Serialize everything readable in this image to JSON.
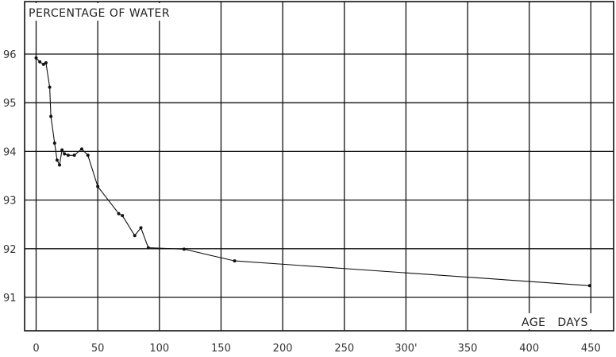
{
  "chart_data": {
    "type": "line",
    "title": "PERCENTAGE OF WATER",
    "xlabel": "AGE   DAYS",
    "ylabel": "",
    "xlim": [
      -10,
      462
    ],
    "ylim": [
      90.5,
      97.0
    ],
    "grid": true,
    "x_ticks": [
      0,
      50,
      100,
      150,
      200,
      250,
      300,
      350,
      400,
      450
    ],
    "x_tick_labels": [
      "0",
      "50",
      "100",
      "150",
      "200",
      "250",
      "300'",
      "350",
      "400",
      "450"
    ],
    "y_ticks": [
      91,
      92,
      93,
      94,
      95,
      96
    ],
    "y_tick_labels": [
      "91",
      "92",
      "93",
      "94",
      "95",
      "96"
    ],
    "series": [
      {
        "x": [
          0,
          3,
          6,
          8,
          11,
          12,
          15,
          17,
          19,
          21,
          23,
          26,
          31,
          37,
          42,
          50,
          67,
          70,
          80,
          85,
          91,
          120,
          161,
          449
        ],
        "y": [
          95.92,
          95.84,
          95.79,
          95.82,
          95.32,
          94.72,
          94.17,
          93.82,
          93.72,
          94.03,
          93.95,
          93.92,
          93.92,
          94.05,
          93.92,
          93.28,
          92.72,
          92.68,
          92.27,
          92.43,
          92.02,
          91.99,
          91.75,
          91.24
        ]
      }
    ]
  }
}
